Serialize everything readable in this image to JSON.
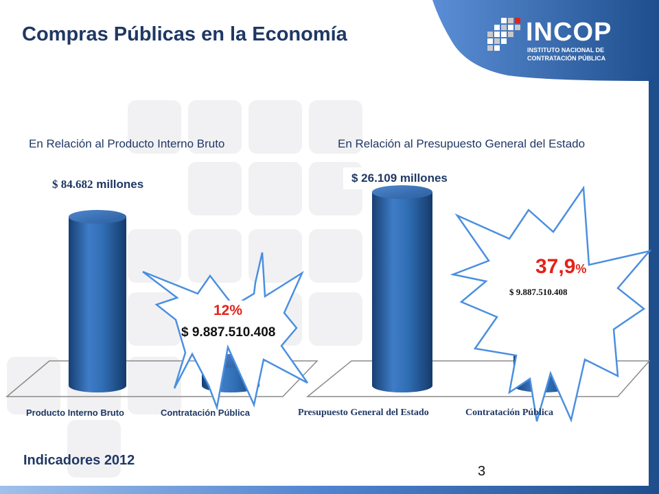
{
  "slide": {
    "title": "Compras Públicas en la Economía",
    "footer": "Indicadores 2012",
    "page_number": "3"
  },
  "logo": {
    "name": "INCOP",
    "line1": "INSTITUTO NACIONAL DE",
    "line2": "CONTRATACIÓN PÚBLICA"
  },
  "left_panel": {
    "subtitle": "En Relación al Producto Interno Bruto",
    "total_label": "$ 84.682",
    "total_unit": "millones",
    "percent": "12%",
    "amount": "$ 9.887.510.408",
    "categories": [
      "Producto Interno Bruto",
      "Contratación Pública"
    ]
  },
  "right_panel": {
    "subtitle": "En Relación al Presupuesto General del Estado",
    "total_label": "$ 26.109 millones",
    "percent_main": "37,9",
    "percent_sign": "%",
    "amount": "$ 9.887.510.408",
    "categories": [
      "Presupuesto General del Estado",
      "Contratación Pública"
    ]
  },
  "colors": {
    "navy": "#1f3864",
    "accent_blue": "#1e4e8c",
    "cylinder_blue": "#2f6db3",
    "burst_stroke": "#4a8fe0",
    "percent_red": "#e2231a"
  },
  "chart_data": [
    {
      "type": "bar",
      "title": "En Relación al Producto Interno Bruto",
      "categories": [
        "Producto Interno Bruto",
        "Contratación Pública"
      ],
      "values": [
        84682,
        9887.510408
      ],
      "data_labels": [
        "$ 84.682 millones",
        "$ 9.887.510.408"
      ],
      "annotation": "12%",
      "xlabel": "",
      "ylabel": ""
    },
    {
      "type": "bar",
      "title": "En Relación al Presupuesto General del Estado",
      "categories": [
        "Presupuesto General del Estado",
        "Contratación Pública"
      ],
      "values": [
        26109,
        9887.510408
      ],
      "data_labels": [
        "$ 26.109 millones",
        "$ 9.887.510.408"
      ],
      "annotation": "37,9%",
      "xlabel": "",
      "ylabel": ""
    }
  ]
}
